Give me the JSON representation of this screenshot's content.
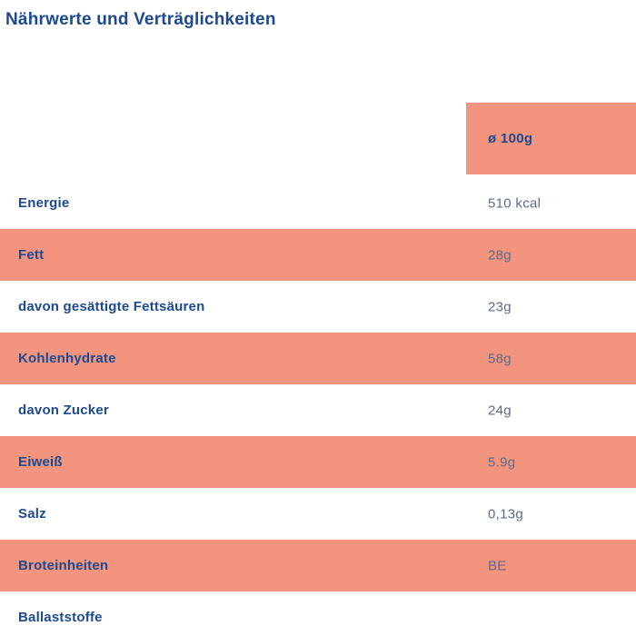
{
  "page": {
    "title": "Nährwerte und Verträglichkeiten"
  },
  "table": {
    "value_column_header": "ø 100g",
    "rows": [
      {
        "label": "Energie",
        "value": "510 kcal",
        "highlighted": false
      },
      {
        "label": "Fett",
        "value": "28g",
        "highlighted": true
      },
      {
        "label": "davon gesättigte Fettsäuren",
        "value": "23g",
        "highlighted": false
      },
      {
        "label": "Kohlenhydrate",
        "value": "58g",
        "highlighted": true
      },
      {
        "label": "davon Zucker",
        "value": "24g",
        "highlighted": false
      },
      {
        "label": "Eiweiß",
        "value": "5.9g",
        "highlighted": true
      },
      {
        "label": "Salz",
        "value": "0,13g",
        "highlighted": false
      },
      {
        "label": "Broteinheiten",
        "value": "BE",
        "highlighted": true
      },
      {
        "label": "Ballaststoffe",
        "value": "",
        "highlighted": false
      }
    ]
  },
  "colors": {
    "highlight": "#F3947F",
    "label_text": "#1B4A90",
    "value_text": "#5C6B8A",
    "background": "#FFFFFF"
  }
}
